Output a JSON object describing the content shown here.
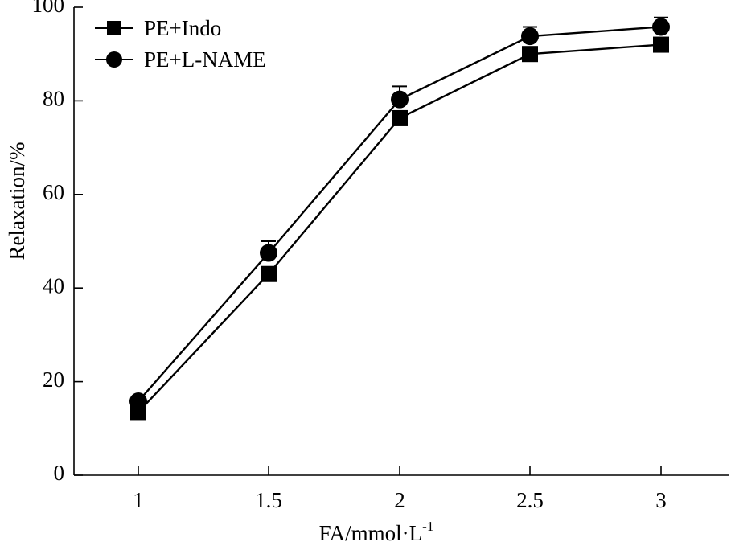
{
  "chart_data": {
    "type": "line",
    "xlabel": "FA/mmol·L",
    "xlabel_superscript": "-1",
    "ylabel": "Relaxation/%",
    "x": [
      1,
      1.5,
      2,
      2.5,
      3
    ],
    "x_tick_labels": [
      "1",
      "1.5",
      "2",
      "2.5",
      "3"
    ],
    "ylim": [
      0,
      100
    ],
    "y_ticks": [
      0,
      20,
      40,
      60,
      80,
      100
    ],
    "y_tick_labels": [
      "0",
      "20",
      "40",
      "60",
      "80",
      "100"
    ],
    "grid": false,
    "legend_position": "top-left",
    "series": [
      {
        "name": "PE+Indo",
        "marker": "square",
        "color": "#000000",
        "values": [
          13.5,
          43,
          76.3,
          90,
          92
        ],
        "errors": [
          0.8,
          1.5,
          1.2,
          1.0,
          1.0
        ]
      },
      {
        "name": "PE+L-NAME",
        "marker": "circle",
        "color": "#000000",
        "values": [
          15.8,
          47.5,
          80.3,
          93.8,
          95.8
        ],
        "errors": [
          1.0,
          2.5,
          2.8,
          2.0,
          2.0
        ]
      }
    ]
  }
}
